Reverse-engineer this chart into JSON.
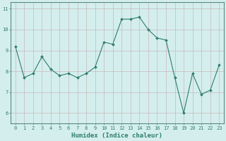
{
  "x": [
    0,
    1,
    2,
    3,
    4,
    5,
    6,
    7,
    8,
    9,
    10,
    11,
    12,
    13,
    14,
    15,
    16,
    17,
    18,
    19,
    20,
    21,
    22,
    23
  ],
  "y": [
    9.2,
    7.7,
    7.9,
    8.7,
    8.1,
    7.8,
    7.9,
    7.7,
    7.9,
    8.2,
    9.4,
    9.3,
    10.5,
    10.5,
    10.6,
    10.0,
    9.6,
    9.5,
    7.7,
    6.0,
    7.9,
    6.9,
    7.1,
    8.3
  ],
  "xlabel": "Humidex (Indice chaleur)",
  "line_color": "#2e7d6e",
  "marker": "D",
  "marker_size": 2.0,
  "bg_color": "#d4eeee",
  "grid_color": "#c8b8b8",
  "ylim": [
    5.5,
    11.3
  ],
  "yticks": [
    6,
    7,
    8,
    9,
    10,
    11
  ],
  "xticks": [
    0,
    1,
    2,
    3,
    4,
    5,
    6,
    7,
    8,
    9,
    10,
    11,
    12,
    13,
    14,
    15,
    16,
    17,
    18,
    19,
    20,
    21,
    22,
    23
  ],
  "spine_color": "#5a8a80",
  "tick_color": "#2e7d6e",
  "xlabel_fontsize": 6.5,
  "tick_fontsize": 5.0
}
